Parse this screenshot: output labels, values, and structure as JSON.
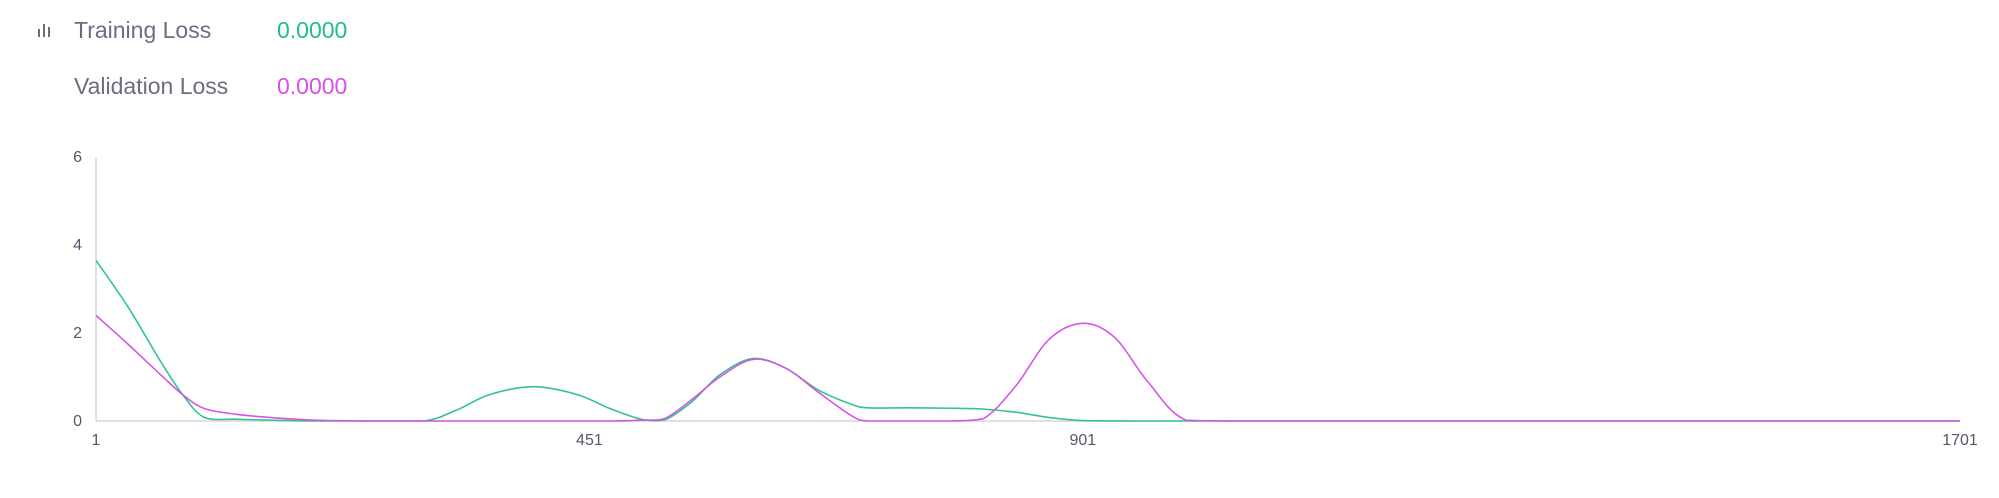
{
  "legend": {
    "training_label": "Training Loss",
    "training_value": "0.0000",
    "validation_label": "Validation Loss",
    "validation_value": "0.0000",
    "icon": "bar-chart-icon"
  },
  "colors": {
    "training": "#34c38f",
    "validation": "#d655e8",
    "axis": "#d6d6dc",
    "tick_text": "#55576a"
  },
  "chart_data": {
    "type": "line",
    "title": "",
    "xlabel": "",
    "ylabel": "",
    "x_ticks": [
      1,
      451,
      901,
      1701
    ],
    "y_ticks": [
      0,
      2,
      4,
      6
    ],
    "xlim": [
      1,
      1701
    ],
    "ylim": [
      0,
      6
    ],
    "grid": false,
    "legend_position": "top-left",
    "series": [
      {
        "name": "Training Loss",
        "color": "#34c38f",
        "x": [
          1,
          30,
          60,
          80,
          100,
          130,
          160,
          200,
          250,
          300,
          330,
          360,
          400,
          440,
          470,
          500,
          520,
          545,
          570,
          600,
          630,
          660,
          690,
          705,
          740,
          780,
          810,
          840,
          870,
          901,
          950,
          1000,
          1200,
          1450,
          1701
        ],
        "y": [
          3.65,
          2.6,
          1.35,
          0.6,
          0.08,
          0.04,
          0.02,
          0.0,
          0.0,
          0.0,
          0.25,
          0.6,
          0.78,
          0.6,
          0.28,
          0.03,
          0.03,
          0.45,
          1.05,
          1.42,
          1.2,
          0.7,
          0.38,
          0.3,
          0.3,
          0.29,
          0.27,
          0.2,
          0.08,
          0.01,
          0.0,
          0.0,
          0.0,
          0.0,
          0.0
        ]
      },
      {
        "name": "Validation Loss",
        "color": "#d655e8",
        "x": [
          1,
          30,
          60,
          80,
          100,
          130,
          160,
          200,
          250,
          300,
          400,
          470,
          500,
          520,
          545,
          570,
          600,
          630,
          660,
          690,
          705,
          740,
          780,
          810,
          840,
          870,
          901,
          930,
          960,
          995,
          1050,
          1200,
          1450,
          1701
        ],
        "y": [
          2.4,
          1.75,
          1.05,
          0.6,
          0.28,
          0.15,
          0.08,
          0.02,
          0.0,
          0.0,
          0.0,
          0.0,
          0.02,
          0.06,
          0.5,
          1.0,
          1.4,
          1.2,
          0.65,
          0.12,
          0.0,
          0.0,
          0.0,
          0.05,
          0.8,
          1.85,
          2.22,
          1.9,
          0.9,
          0.02,
          0.0,
          0.0,
          0.0,
          0.0
        ]
      }
    ]
  }
}
